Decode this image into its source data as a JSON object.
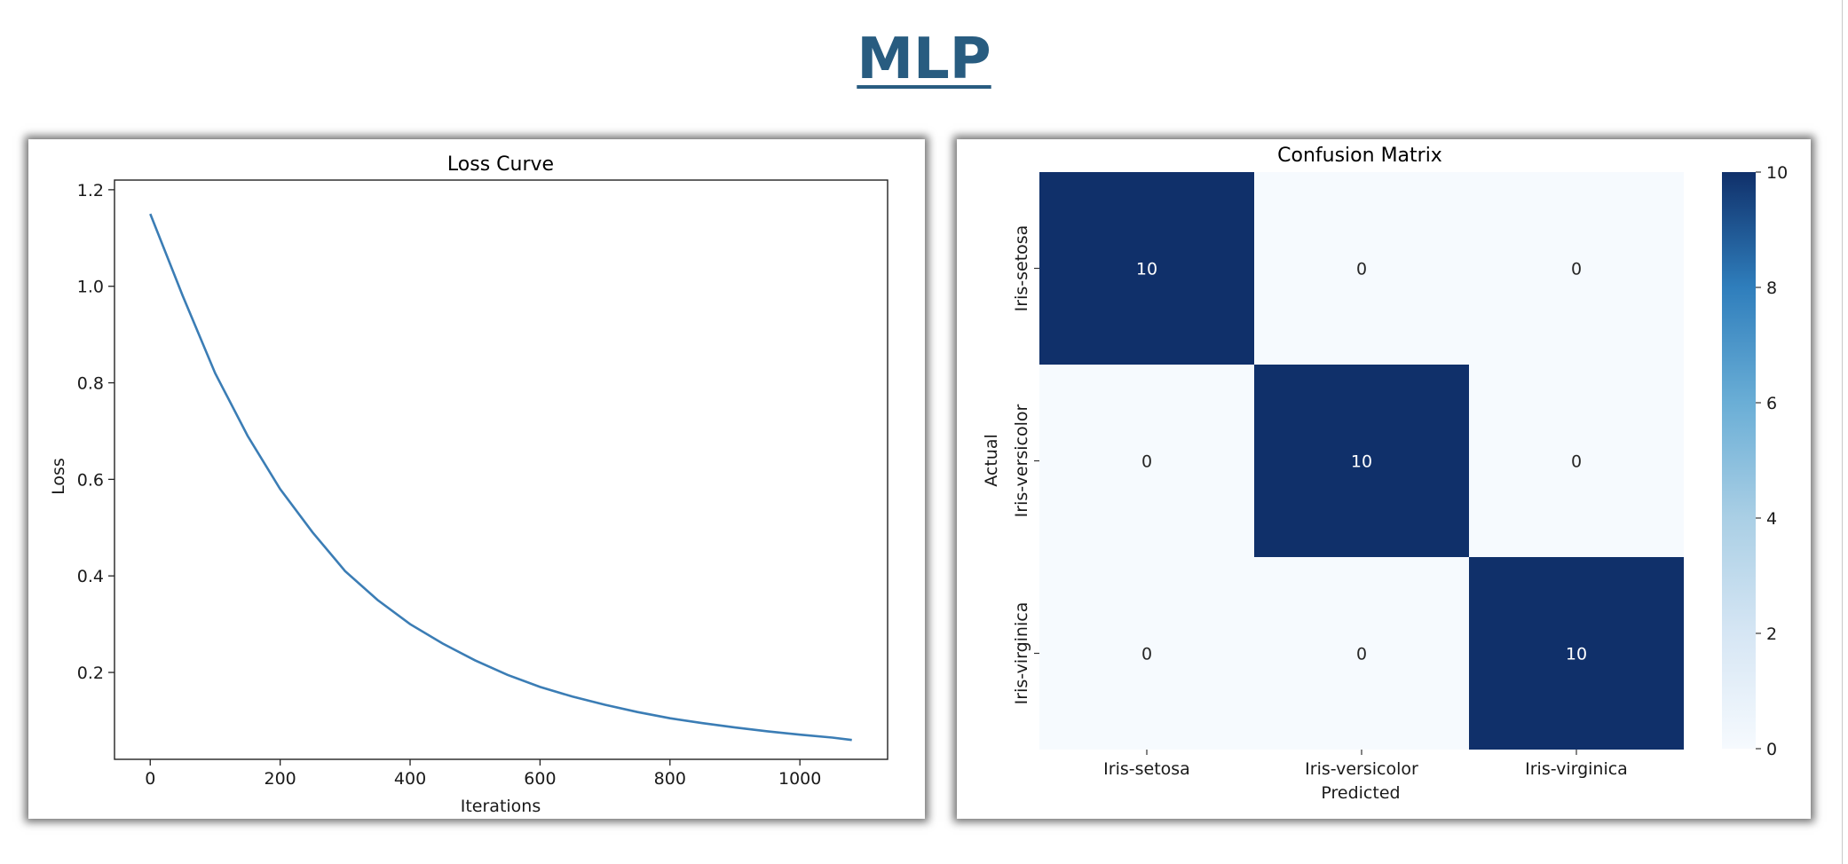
{
  "page": {
    "title": "MLP"
  },
  "chart_data": [
    {
      "type": "line",
      "title": "Loss Curve",
      "xlabel": "Iterations",
      "ylabel": "Loss",
      "xlim": [
        -55,
        1135
      ],
      "ylim": [
        0.02,
        1.22
      ],
      "xticks": [
        0,
        200,
        400,
        600,
        800,
        1000
      ],
      "yticks": [
        0.2,
        0.4,
        0.6,
        0.8,
        1.0,
        1.2
      ],
      "grid": false,
      "series": [
        {
          "color": "#3b7db5",
          "x": [
            0,
            50,
            100,
            150,
            200,
            250,
            300,
            350,
            400,
            450,
            500,
            550,
            600,
            650,
            700,
            750,
            800,
            850,
            900,
            950,
            1000,
            1050,
            1080
          ],
          "y": [
            1.15,
            0.98,
            0.82,
            0.69,
            0.58,
            0.49,
            0.41,
            0.35,
            0.3,
            0.26,
            0.225,
            0.195,
            0.17,
            0.15,
            0.133,
            0.118,
            0.105,
            0.095,
            0.086,
            0.078,
            0.071,
            0.065,
            0.06
          ]
        }
      ]
    },
    {
      "type": "heatmap",
      "title": "Confusion Matrix",
      "xlabel": "Predicted",
      "ylabel": "Actual",
      "x_categories": [
        "Iris-setosa",
        "Iris-versicolor",
        "Iris-virginica"
      ],
      "y_categories": [
        "Iris-setosa",
        "Iris-versicolor",
        "Iris-virginica"
      ],
      "values": [
        [
          10,
          0,
          0
        ],
        [
          0,
          10,
          0
        ],
        [
          0,
          0,
          10
        ]
      ],
      "colormap": "Blues",
      "colorbar": {
        "range": [
          0,
          10
        ],
        "ticks": [
          0,
          2,
          4,
          6,
          8,
          10
        ]
      },
      "colors": {
        "high": "#10306a",
        "low": "#f6fafe"
      }
    }
  ]
}
